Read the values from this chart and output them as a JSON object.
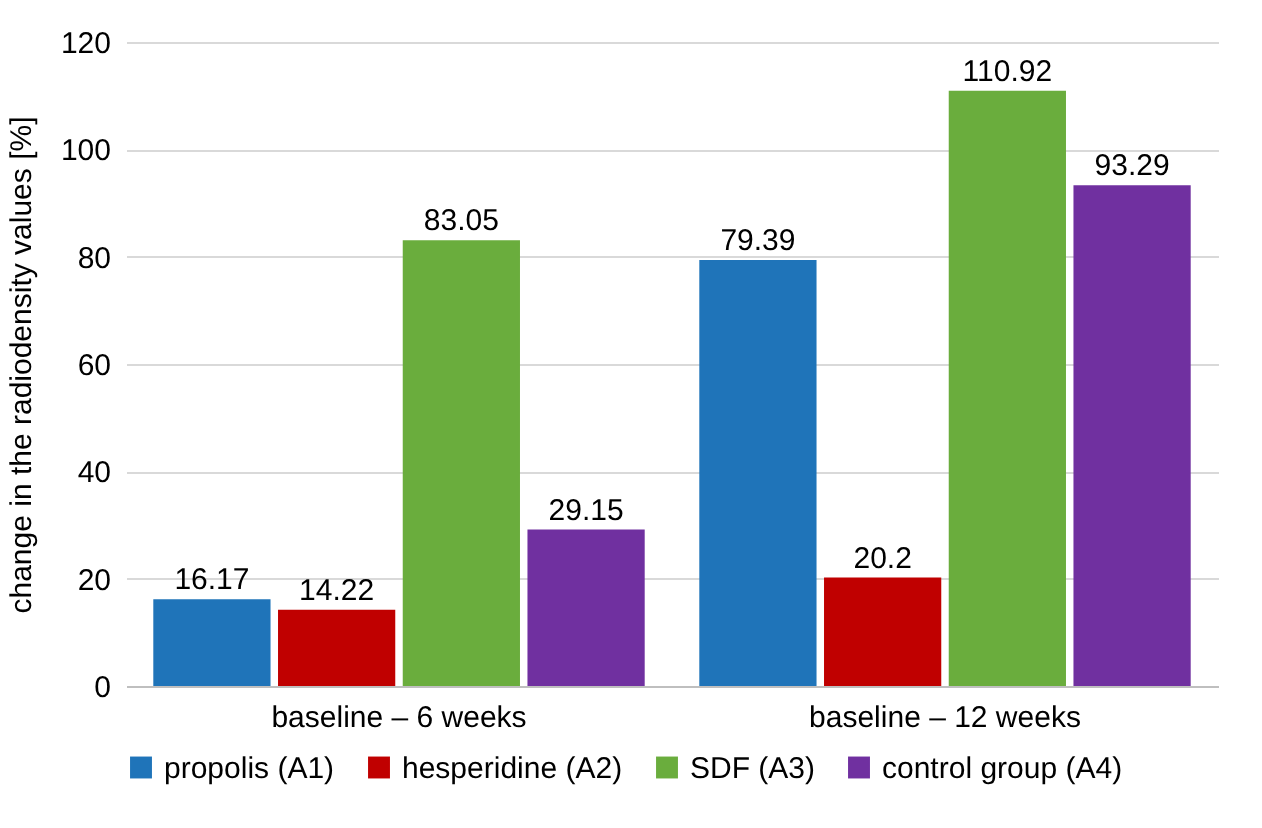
{
  "chart_data": {
    "type": "bar",
    "ylabel": "change in the radiodensity values [%]",
    "categories": [
      "baseline – 6 weeks",
      "baseline – 12 weeks"
    ],
    "series": [
      {
        "name": "propolis (A1)",
        "color": "#1f74b9",
        "values": [
          16.17,
          79.39
        ]
      },
      {
        "name": "hesperidine (A2)",
        "color": "#c00000",
        "values": [
          14.22,
          20.2
        ]
      },
      {
        "name": "SDF (A3)",
        "color": "#6aad3d",
        "values": [
          83.05,
          110.92
        ]
      },
      {
        "name": "control group (A4)",
        "color": "#7030a0",
        "values": [
          29.15,
          93.29
        ]
      }
    ],
    "ylim": [
      0,
      120
    ],
    "yticks": [
      0,
      20,
      40,
      60,
      80,
      100,
      120
    ],
    "grid": "y",
    "legend": "bottom",
    "data_labels": true
  }
}
